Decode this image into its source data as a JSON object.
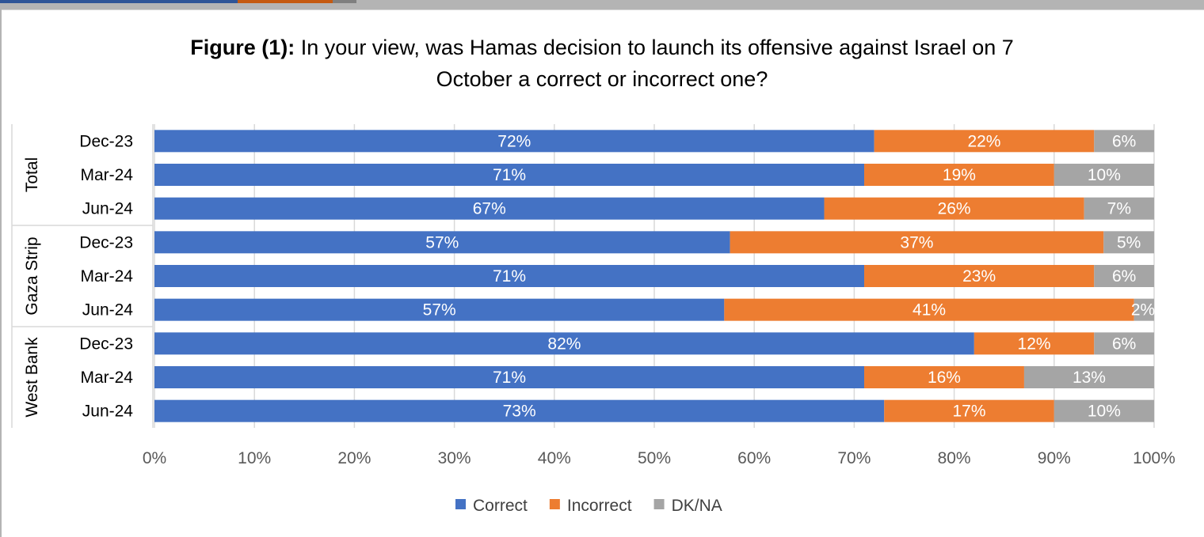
{
  "chart_data": {
    "type": "bar",
    "orientation": "horizontal",
    "stacked": "percent",
    "title_prefix": "Figure (1):",
    "title_line1": "In your view,  was Hamas decision to launch its offensive against Israel on 7",
    "title_line2": "October a correct or incorrect one?",
    "groups": [
      {
        "name": "Total",
        "categories": [
          "Dec-23",
          "Mar-24",
          "Jun-24"
        ]
      },
      {
        "name": "Gaza Strip",
        "categories": [
          "Dec-23",
          "Mar-24",
          "Jun-24"
        ]
      },
      {
        "name": "West Bank",
        "categories": [
          "Dec-23",
          "Mar-24",
          "Jun-24"
        ]
      }
    ],
    "series": [
      {
        "name": "Correct",
        "color": "#4472c4",
        "values": [
          72,
          71,
          67,
          57,
          71,
          57,
          82,
          71,
          73
        ]
      },
      {
        "name": "Incorrect",
        "color": "#ed7d31",
        "values": [
          22,
          19,
          26,
          37,
          23,
          41,
          12,
          16,
          17
        ]
      },
      {
        "name": "DK/NA",
        "color": "#a5a5a5",
        "values": [
          6,
          10,
          7,
          5,
          6,
          2,
          6,
          13,
          10
        ]
      }
    ],
    "xlim": [
      0,
      100
    ],
    "xticks": [
      "0%",
      "10%",
      "20%",
      "30%",
      "40%",
      "50%",
      "60%",
      "70%",
      "80%",
      "90%",
      "100%"
    ],
    "grid": true,
    "legend_position": "bottom"
  }
}
